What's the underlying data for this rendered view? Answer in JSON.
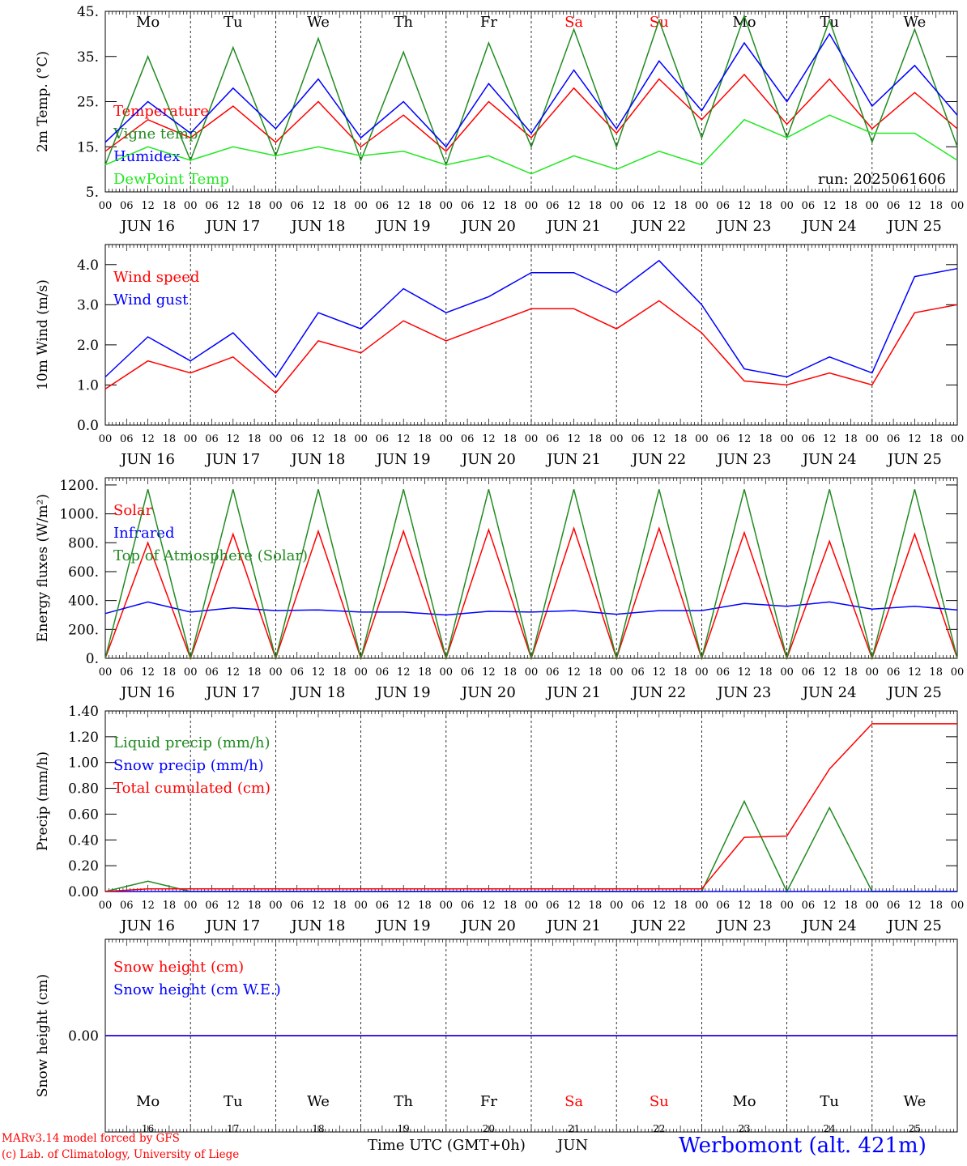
{
  "header": {
    "days": [
      {
        "label": "Mo",
        "weekend": false
      },
      {
        "label": "Tu",
        "weekend": false
      },
      {
        "label": "We",
        "weekend": false
      },
      {
        "label": "Th",
        "weekend": false
      },
      {
        "label": "Fr",
        "weekend": false
      },
      {
        "label": "Sa",
        "weekend": true
      },
      {
        "label": "Su",
        "weekend": true
      },
      {
        "label": "Mo",
        "weekend": false
      },
      {
        "label": "Tu",
        "weekend": false
      },
      {
        "label": "We",
        "weekend": false
      }
    ],
    "dates": [
      "JUN 16",
      "JUN 17",
      "JUN 18",
      "JUN 19",
      "JUN 20",
      "JUN 21",
      "JUN 22",
      "JUN 23",
      "JUN 24",
      "JUN 25"
    ],
    "day_numbers": [
      "16",
      "17",
      "18",
      "19",
      "20",
      "21",
      "22",
      "23",
      "24",
      "25"
    ],
    "hour_ticks": [
      "00",
      "06",
      "12",
      "18"
    ],
    "final_hour": "00",
    "run": "run: 2025061606"
  },
  "footer": {
    "model": "MARv3.14 model forced by GFS",
    "lab": "(c) Lab. of Climatology, University of Liege",
    "xlabel": "Time UTC (GMT+0h)",
    "month": "JUN",
    "station": "Werbomont (alt. 421m)"
  },
  "colors": {
    "red": "#ff0000",
    "green": "#228b22",
    "blue": "#0000ff",
    "lightgreen": "#22e822"
  },
  "chart_data": [
    {
      "type": "line",
      "ylabel": "2m Temp. (°C)",
      "ylim": [
        5,
        45
      ],
      "yticks": [
        "5.",
        "15.",
        "25.",
        "35.",
        "45."
      ],
      "yticks_values": [
        5,
        15,
        25,
        35,
        45
      ],
      "step_hours": 12,
      "series": [
        {
          "name": "Temperature",
          "color": "#ff0000",
          "values": [
            14,
            21,
            17,
            24,
            16,
            25,
            15,
            22,
            14,
            25,
            17,
            28,
            18,
            30,
            21,
            31,
            20,
            30,
            19,
            27,
            19
          ]
        },
        {
          "name": "Vigne temp",
          "color": "#228b22",
          "values": [
            11,
            35,
            12,
            37,
            13,
            39,
            12,
            36,
            11,
            38,
            15,
            41,
            15,
            43,
            17,
            44,
            17,
            43,
            16,
            41,
            15
          ]
        },
        {
          "name": "Humidex",
          "color": "#0000ff",
          "values": [
            16,
            25,
            18,
            28,
            19,
            30,
            17,
            25,
            15,
            29,
            18,
            32,
            19,
            34,
            23,
            38,
            25,
            40,
            24,
            33,
            22
          ]
        },
        {
          "name": "DewPoint Temp",
          "color": "#22e822",
          "values": [
            11,
            15,
            12,
            15,
            13,
            15,
            13,
            14,
            11,
            13,
            9,
            13,
            10,
            14,
            11,
            21,
            17,
            22,
            18,
            18,
            12
          ]
        }
      ]
    },
    {
      "type": "line",
      "ylabel": "10m Wind (m/s)",
      "ylim": [
        0,
        4.5
      ],
      "yticks": [
        "0.0",
        "1.0",
        "2.0",
        "3.0",
        "4.0"
      ],
      "yticks_values": [
        0,
        1,
        2,
        3,
        4
      ],
      "step_hours": 12,
      "series": [
        {
          "name": "Wind speed",
          "color": "#ff0000",
          "values": [
            0.9,
            1.6,
            1.3,
            1.7,
            0.8,
            2.1,
            1.8,
            2.6,
            2.1,
            2.5,
            2.9,
            2.9,
            2.4,
            3.1,
            2.3,
            1.1,
            1.0,
            1.3,
            1.0,
            2.8,
            3.0
          ]
        },
        {
          "name": "Wind gust",
          "color": "#0000ff",
          "values": [
            1.2,
            2.2,
            1.6,
            2.3,
            1.2,
            2.8,
            2.4,
            3.4,
            2.8,
            3.2,
            3.8,
            3.8,
            3.3,
            4.1,
            3.0,
            1.4,
            1.2,
            1.7,
            1.3,
            3.7,
            3.9
          ]
        }
      ]
    },
    {
      "type": "line",
      "ylabel": "Energy fluxes (W/m²)",
      "ylim": [
        0,
        1250
      ],
      "yticks": [
        "0.",
        "200.",
        "400.",
        "600.",
        "800.",
        "1000.",
        "1200."
      ],
      "yticks_values": [
        0,
        200,
        400,
        600,
        800,
        1000,
        1200
      ],
      "step_hours": 12,
      "series": [
        {
          "name": "Solar",
          "color": "#ff0000",
          "values": [
            0,
            800,
            0,
            860,
            0,
            880,
            0,
            880,
            0,
            890,
            0,
            900,
            0,
            900,
            0,
            870,
            0,
            810,
            0,
            860,
            0
          ]
        },
        {
          "name": "Infrared",
          "color": "#0000ff",
          "values": [
            310,
            390,
            320,
            350,
            330,
            335,
            320,
            320,
            300,
            325,
            320,
            330,
            305,
            330,
            330,
            380,
            360,
            390,
            340,
            360,
            335
          ]
        },
        {
          "name": "Top of Atmosphere (Solar)",
          "color": "#228b22",
          "values": [
            0,
            1170,
            0,
            1170,
            0,
            1170,
            0,
            1170,
            0,
            1170,
            0,
            1170,
            0,
            1170,
            0,
            1170,
            0,
            1170,
            0,
            1170,
            0
          ]
        }
      ]
    },
    {
      "type": "line",
      "ylabel": "Precip (mm/h)",
      "ylim": [
        0,
        1.4
      ],
      "yticks": [
        "0.00",
        "0.20",
        "0.40",
        "0.60",
        "0.80",
        "1.00",
        "1.20",
        "1.40"
      ],
      "yticks_values": [
        0,
        0.2,
        0.4,
        0.6,
        0.8,
        1.0,
        1.2,
        1.4
      ],
      "step_hours": 12,
      "series": [
        {
          "name": "Liquid precip (mm/h)",
          "color": "#228b22",
          "values": [
            0,
            0.08,
            0,
            0,
            0,
            0,
            0,
            0,
            0,
            0,
            0,
            0,
            0,
            0,
            0,
            0.7,
            0,
            0.65,
            0,
            0,
            0
          ]
        },
        {
          "name": "Snow precip (mm/h)",
          "color": "#0000ff",
          "values": [
            0,
            0,
            0,
            0,
            0,
            0,
            0,
            0,
            0,
            0,
            0,
            0,
            0,
            0,
            0,
            0,
            0,
            0,
            0,
            0,
            0
          ]
        },
        {
          "name": "Total cumulated (cm)",
          "color": "#ff0000",
          "values": [
            0,
            0.02,
            0.02,
            0.02,
            0.02,
            0.02,
            0.02,
            0.02,
            0.02,
            0.02,
            0.02,
            0.02,
            0.02,
            0.02,
            0.02,
            0.42,
            0.43,
            0.95,
            1.3,
            1.3,
            1.3
          ]
        }
      ]
    },
    {
      "type": "line",
      "ylabel": "Snow height (cm)",
      "ylim": [
        -1,
        1
      ],
      "yticks": [
        "0.00"
      ],
      "yticks_values": [
        0
      ],
      "step_hours": 12,
      "series": [
        {
          "name": "Snow height (cm)",
          "color": "#ff0000",
          "values": [
            0,
            0,
            0,
            0,
            0,
            0,
            0,
            0,
            0,
            0,
            0,
            0,
            0,
            0,
            0,
            0,
            0,
            0,
            0,
            0,
            0
          ]
        },
        {
          "name": "Snow height (cm W.E.)",
          "color": "#0000ff",
          "values": [
            0,
            0,
            0,
            0,
            0,
            0,
            0,
            0,
            0,
            0,
            0,
            0,
            0,
            0,
            0,
            0,
            0,
            0,
            0,
            0,
            0
          ]
        }
      ]
    }
  ]
}
